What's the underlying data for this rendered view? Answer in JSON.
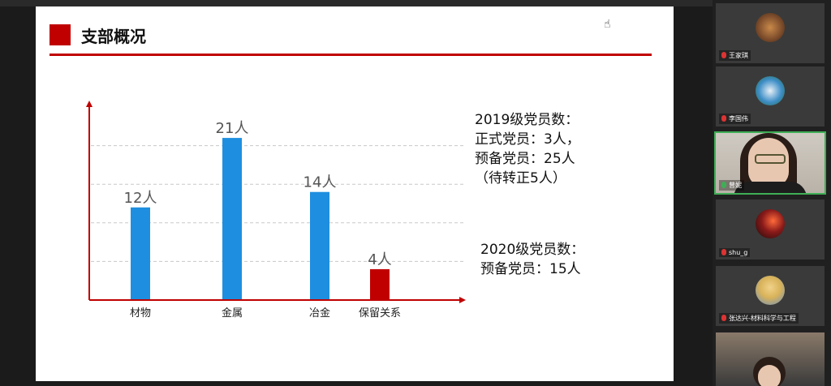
{
  "slide": {
    "title": "支部概况",
    "stats_2019": [
      "2019级党员数：",
      "正式党员：3人，",
      "预备党员：25人",
      "（待转正5人）"
    ],
    "stats_2020": [
      "2020级党员数：",
      "预备党员：15人"
    ]
  },
  "chart_data": {
    "type": "bar",
    "categories": [
      "材物",
      "金属",
      "冶金",
      "保留关系"
    ],
    "values": [
      12,
      21,
      14,
      4
    ],
    "data_labels": [
      "12人",
      "21人",
      "14人",
      "4人"
    ],
    "bar_colors": [
      "#1e8fe0",
      "#1e8fe0",
      "#1e8fe0",
      "#c00000"
    ],
    "title": "",
    "xlabel": "",
    "ylabel": "",
    "ylim": [
      0,
      25
    ],
    "grid": true
  },
  "participants": [
    {
      "name": "王家琪",
      "mic": "muted",
      "avatar_color": "#7a4a2a"
    },
    {
      "name": "李国伟",
      "mic": "muted",
      "avatar_color": "#3d8ec7"
    },
    {
      "name": "曾妮",
      "mic": "on",
      "active": true
    },
    {
      "name": "shu_g",
      "mic": "muted",
      "avatar_color": "#8a1a1a"
    },
    {
      "name": "张达兴-材料科学与工程",
      "mic": "muted",
      "avatar_color": "#d9b35a"
    },
    {
      "name": "",
      "mic": "",
      "partial": true
    }
  ]
}
